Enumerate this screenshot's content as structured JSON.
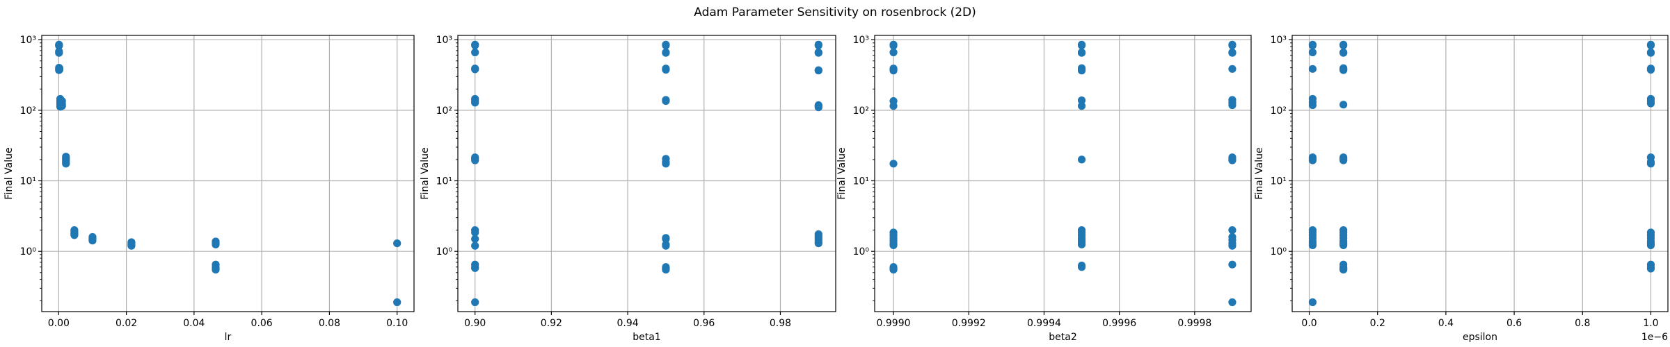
{
  "figure": {
    "title": "Adam Parameter Sensitivity on rosenbrock (2D)"
  },
  "colors": {
    "point": "#1f77b4",
    "grid": "#b0b0b0",
    "axis": "#000000"
  },
  "chart_data": [
    {
      "type": "scatter",
      "xlabel": "lr",
      "ylabel": "Final Value",
      "yscale": "log",
      "grid": true,
      "xlim": [
        -0.005,
        0.105
      ],
      "ylim": [
        0.14,
        1150
      ],
      "xticks": [
        0.0,
        0.02,
        0.04,
        0.06,
        0.08,
        0.1
      ],
      "xtick_labels": [
        "0.00",
        "0.02",
        "0.04",
        "0.06",
        "0.08",
        "0.10"
      ],
      "yticks": [
        1,
        10,
        100,
        1000
      ],
      "ytick_labels": [
        "10⁰",
        "10¹",
        "10²",
        "10³"
      ],
      "offset_text": "",
      "points": [
        {
          "x": 0.0001,
          "y": 850
        },
        {
          "x": 0.0001,
          "y": 830
        },
        {
          "x": 0.0001,
          "y": 820
        },
        {
          "x": 0.0001,
          "y": 680
        },
        {
          "x": 0.0001,
          "y": 650
        },
        {
          "x": 0.0001,
          "y": 400
        },
        {
          "x": 0.0001,
          "y": 385
        },
        {
          "x": 0.0001,
          "y": 370
        },
        {
          "x": 0.00022,
          "y": 395
        },
        {
          "x": 0.00022,
          "y": 375
        },
        {
          "x": 0.00046,
          "y": 145
        },
        {
          "x": 0.00046,
          "y": 138
        },
        {
          "x": 0.00046,
          "y": 130
        },
        {
          "x": 0.00046,
          "y": 125
        },
        {
          "x": 0.00046,
          "y": 118
        },
        {
          "x": 0.00046,
          "y": 112
        },
        {
          "x": 0.001,
          "y": 135
        },
        {
          "x": 0.001,
          "y": 122
        },
        {
          "x": 0.001,
          "y": 115
        },
        {
          "x": 0.00215,
          "y": 22
        },
        {
          "x": 0.00215,
          "y": 21
        },
        {
          "x": 0.00215,
          "y": 20
        },
        {
          "x": 0.00215,
          "y": 19
        },
        {
          "x": 0.00215,
          "y": 18
        },
        {
          "x": 0.00215,
          "y": 17.5
        },
        {
          "x": 0.00464,
          "y": 2.0
        },
        {
          "x": 0.00464,
          "y": 1.9
        },
        {
          "x": 0.00464,
          "y": 1.8
        },
        {
          "x": 0.00464,
          "y": 1.75
        },
        {
          "x": 0.00464,
          "y": 1.7
        },
        {
          "x": 0.01,
          "y": 1.6
        },
        {
          "x": 0.01,
          "y": 1.55
        },
        {
          "x": 0.01,
          "y": 1.5
        },
        {
          "x": 0.01,
          "y": 1.45
        },
        {
          "x": 0.01,
          "y": 1.42
        },
        {
          "x": 0.0215,
          "y": 1.35
        },
        {
          "x": 0.0215,
          "y": 1.3
        },
        {
          "x": 0.0215,
          "y": 1.25
        },
        {
          "x": 0.0215,
          "y": 1.22
        },
        {
          "x": 0.0215,
          "y": 1.2
        },
        {
          "x": 0.0464,
          "y": 1.38
        },
        {
          "x": 0.0464,
          "y": 1.3
        },
        {
          "x": 0.0464,
          "y": 1.25
        },
        {
          "x": 0.0464,
          "y": 0.65
        },
        {
          "x": 0.0464,
          "y": 0.6
        },
        {
          "x": 0.0464,
          "y": 0.58
        },
        {
          "x": 0.0464,
          "y": 0.55
        },
        {
          "x": 0.1,
          "y": 1.3
        },
        {
          "x": 0.1,
          "y": 0.19
        }
      ]
    },
    {
      "type": "scatter",
      "xlabel": "beta1",
      "ylabel": "Final Value",
      "yscale": "log",
      "grid": true,
      "xlim": [
        0.8955,
        0.9945
      ],
      "ylim": [
        0.14,
        1150
      ],
      "xticks": [
        0.9,
        0.92,
        0.94,
        0.96,
        0.98
      ],
      "xtick_labels": [
        "0.90",
        "0.92",
        "0.94",
        "0.96",
        "0.98"
      ],
      "yticks": [
        1,
        10,
        100,
        1000
      ],
      "ytick_labels": [
        "10⁰",
        "10¹",
        "10²",
        "10³"
      ],
      "offset_text": "",
      "points": [
        {
          "x": 0.9,
          "y": 850
        },
        {
          "x": 0.9,
          "y": 830
        },
        {
          "x": 0.9,
          "y": 660
        },
        {
          "x": 0.9,
          "y": 390
        },
        {
          "x": 0.9,
          "y": 380
        },
        {
          "x": 0.9,
          "y": 145
        },
        {
          "x": 0.9,
          "y": 135
        },
        {
          "x": 0.9,
          "y": 128
        },
        {
          "x": 0.9,
          "y": 21.5
        },
        {
          "x": 0.9,
          "y": 20.5
        },
        {
          "x": 0.9,
          "y": 19.5
        },
        {
          "x": 0.9,
          "y": 2.0
        },
        {
          "x": 0.9,
          "y": 1.85
        },
        {
          "x": 0.9,
          "y": 1.5
        },
        {
          "x": 0.9,
          "y": 1.2
        },
        {
          "x": 0.9,
          "y": 0.65
        },
        {
          "x": 0.9,
          "y": 0.6
        },
        {
          "x": 0.9,
          "y": 0.58
        },
        {
          "x": 0.9,
          "y": 0.19
        },
        {
          "x": 0.95,
          "y": 850
        },
        {
          "x": 0.95,
          "y": 830
        },
        {
          "x": 0.95,
          "y": 660
        },
        {
          "x": 0.95,
          "y": 650
        },
        {
          "x": 0.95,
          "y": 390
        },
        {
          "x": 0.95,
          "y": 375
        },
        {
          "x": 0.95,
          "y": 140
        },
        {
          "x": 0.95,
          "y": 135
        },
        {
          "x": 0.95,
          "y": 20.5
        },
        {
          "x": 0.95,
          "y": 18.5
        },
        {
          "x": 0.95,
          "y": 17.5
        },
        {
          "x": 0.95,
          "y": 1.55
        },
        {
          "x": 0.95,
          "y": 1.5
        },
        {
          "x": 0.95,
          "y": 1.25
        },
        {
          "x": 0.95,
          "y": 1.2
        },
        {
          "x": 0.95,
          "y": 0.6
        },
        {
          "x": 0.95,
          "y": 0.57
        },
        {
          "x": 0.95,
          "y": 0.55
        },
        {
          "x": 0.99,
          "y": 850
        },
        {
          "x": 0.99,
          "y": 830
        },
        {
          "x": 0.99,
          "y": 660
        },
        {
          "x": 0.99,
          "y": 650
        },
        {
          "x": 0.99,
          "y": 370
        },
        {
          "x": 0.99,
          "y": 365
        },
        {
          "x": 0.99,
          "y": 118
        },
        {
          "x": 0.99,
          "y": 114
        },
        {
          "x": 0.99,
          "y": 110
        },
        {
          "x": 0.99,
          "y": 1.75
        },
        {
          "x": 0.99,
          "y": 1.65
        },
        {
          "x": 0.99,
          "y": 1.55
        },
        {
          "x": 0.99,
          "y": 1.45
        },
        {
          "x": 0.99,
          "y": 1.35
        },
        {
          "x": 0.99,
          "y": 1.3
        }
      ]
    },
    {
      "type": "scatter",
      "xlabel": "beta2",
      "ylabel": "Final Value",
      "yscale": "log",
      "grid": true,
      "xlim": [
        0.99895,
        0.99995
      ],
      "ylim": [
        0.14,
        1150
      ],
      "xticks": [
        0.999,
        0.9992,
        0.9994,
        0.9996,
        0.9998
      ],
      "xtick_labels": [
        "0.9990",
        "0.9992",
        "0.9994",
        "0.9996",
        "0.9998"
      ],
      "yticks": [
        1,
        10,
        100,
        1000
      ],
      "ytick_labels": [
        "10⁰",
        "10¹",
        "10²",
        "10³"
      ],
      "offset_text": "",
      "points": [
        {
          "x": 0.999,
          "y": 850
        },
        {
          "x": 0.999,
          "y": 820
        },
        {
          "x": 0.999,
          "y": 660
        },
        {
          "x": 0.999,
          "y": 390
        },
        {
          "x": 0.999,
          "y": 375
        },
        {
          "x": 0.999,
          "y": 365
        },
        {
          "x": 0.999,
          "y": 135
        },
        {
          "x": 0.999,
          "y": 115
        },
        {
          "x": 0.999,
          "y": 17.5
        },
        {
          "x": 0.999,
          "y": 1.85
        },
        {
          "x": 0.999,
          "y": 1.7
        },
        {
          "x": 0.999,
          "y": 1.55
        },
        {
          "x": 0.999,
          "y": 1.42
        },
        {
          "x": 0.999,
          "y": 1.3
        },
        {
          "x": 0.999,
          "y": 1.22
        },
        {
          "x": 0.999,
          "y": 0.6
        },
        {
          "x": 0.999,
          "y": 0.57
        },
        {
          "x": 0.999,
          "y": 0.55
        },
        {
          "x": 0.9995,
          "y": 850
        },
        {
          "x": 0.9995,
          "y": 830
        },
        {
          "x": 0.9995,
          "y": 660
        },
        {
          "x": 0.9995,
          "y": 650
        },
        {
          "x": 0.9995,
          "y": 395
        },
        {
          "x": 0.9995,
          "y": 380
        },
        {
          "x": 0.9995,
          "y": 365
        },
        {
          "x": 0.9995,
          "y": 138
        },
        {
          "x": 0.9995,
          "y": 115
        },
        {
          "x": 0.9995,
          "y": 20
        },
        {
          "x": 0.9995,
          "y": 2.0
        },
        {
          "x": 0.9995,
          "y": 1.85
        },
        {
          "x": 0.9995,
          "y": 1.7
        },
        {
          "x": 0.9995,
          "y": 1.55
        },
        {
          "x": 0.9995,
          "y": 1.45
        },
        {
          "x": 0.9995,
          "y": 1.35
        },
        {
          "x": 0.9995,
          "y": 1.25
        },
        {
          "x": 0.9995,
          "y": 0.63
        },
        {
          "x": 0.9995,
          "y": 0.6
        },
        {
          "x": 0.9999,
          "y": 850
        },
        {
          "x": 0.9999,
          "y": 830
        },
        {
          "x": 0.9999,
          "y": 660
        },
        {
          "x": 0.9999,
          "y": 650
        },
        {
          "x": 0.9999,
          "y": 385
        },
        {
          "x": 0.9999,
          "y": 140
        },
        {
          "x": 0.9999,
          "y": 128
        },
        {
          "x": 0.9999,
          "y": 118
        },
        {
          "x": 0.9999,
          "y": 21.5
        },
        {
          "x": 0.9999,
          "y": 20.5
        },
        {
          "x": 0.9999,
          "y": 19.5
        },
        {
          "x": 0.9999,
          "y": 2.0
        },
        {
          "x": 0.9999,
          "y": 1.6
        },
        {
          "x": 0.9999,
          "y": 1.45
        },
        {
          "x": 0.9999,
          "y": 1.3
        },
        {
          "x": 0.9999,
          "y": 1.2
        },
        {
          "x": 0.9999,
          "y": 0.65
        },
        {
          "x": 0.9999,
          "y": 0.19
        }
      ]
    },
    {
      "type": "scatter",
      "xlabel": "epsilon",
      "ylabel": "Final Value",
      "yscale": "log",
      "grid": true,
      "xlim": [
        -0.05,
        1.05
      ],
      "ylim": [
        0.14,
        1150
      ],
      "xticks": [
        0.0,
        0.2,
        0.4,
        0.6,
        0.8,
        1.0
      ],
      "xtick_labels": [
        "0.0",
        "0.2",
        "0.4",
        "0.6",
        "0.8",
        "1.0"
      ],
      "yticks": [
        1,
        10,
        100,
        1000
      ],
      "ytick_labels": [
        "10⁰",
        "10¹",
        "10²",
        "10³"
      ],
      "offset_text": "1e−6",
      "points": [
        {
          "x": 0.01,
          "y": 850
        },
        {
          "x": 0.01,
          "y": 830
        },
        {
          "x": 0.01,
          "y": 660
        },
        {
          "x": 0.01,
          "y": 385
        },
        {
          "x": 0.01,
          "y": 145
        },
        {
          "x": 0.01,
          "y": 130
        },
        {
          "x": 0.01,
          "y": 118
        },
        {
          "x": 0.01,
          "y": 21.5
        },
        {
          "x": 0.01,
          "y": 20.5
        },
        {
          "x": 0.01,
          "y": 19.5
        },
        {
          "x": 0.01,
          "y": 2.0
        },
        {
          "x": 0.01,
          "y": 1.85
        },
        {
          "x": 0.01,
          "y": 1.7
        },
        {
          "x": 0.01,
          "y": 1.55
        },
        {
          "x": 0.01,
          "y": 1.4
        },
        {
          "x": 0.01,
          "y": 1.3
        },
        {
          "x": 0.01,
          "y": 1.22
        },
        {
          "x": 0.01,
          "y": 0.19
        },
        {
          "x": 0.1,
          "y": 850
        },
        {
          "x": 0.1,
          "y": 830
        },
        {
          "x": 0.1,
          "y": 660
        },
        {
          "x": 0.1,
          "y": 650
        },
        {
          "x": 0.1,
          "y": 395
        },
        {
          "x": 0.1,
          "y": 380
        },
        {
          "x": 0.1,
          "y": 370
        },
        {
          "x": 0.1,
          "y": 120
        },
        {
          "x": 0.1,
          "y": 21.5
        },
        {
          "x": 0.1,
          "y": 20.5
        },
        {
          "x": 0.1,
          "y": 19.5
        },
        {
          "x": 0.1,
          "y": 2.0
        },
        {
          "x": 0.1,
          "y": 1.85
        },
        {
          "x": 0.1,
          "y": 1.7
        },
        {
          "x": 0.1,
          "y": 1.55
        },
        {
          "x": 0.1,
          "y": 1.4
        },
        {
          "x": 0.1,
          "y": 1.3
        },
        {
          "x": 0.1,
          "y": 1.22
        },
        {
          "x": 0.1,
          "y": 0.65
        },
        {
          "x": 0.1,
          "y": 0.6
        },
        {
          "x": 0.1,
          "y": 0.57
        },
        {
          "x": 0.1,
          "y": 0.55
        },
        {
          "x": 1.0,
          "y": 850
        },
        {
          "x": 1.0,
          "y": 830
        },
        {
          "x": 1.0,
          "y": 660
        },
        {
          "x": 1.0,
          "y": 650
        },
        {
          "x": 1.0,
          "y": 390
        },
        {
          "x": 1.0,
          "y": 375
        },
        {
          "x": 1.0,
          "y": 145
        },
        {
          "x": 1.0,
          "y": 135
        },
        {
          "x": 1.0,
          "y": 125
        },
        {
          "x": 1.0,
          "y": 21.5
        },
        {
          "x": 1.0,
          "y": 18.5
        },
        {
          "x": 1.0,
          "y": 17.5
        },
        {
          "x": 1.0,
          "y": 1.85
        },
        {
          "x": 1.0,
          "y": 1.7
        },
        {
          "x": 1.0,
          "y": 1.55
        },
        {
          "x": 1.0,
          "y": 1.4
        },
        {
          "x": 1.0,
          "y": 1.3
        },
        {
          "x": 1.0,
          "y": 1.22
        },
        {
          "x": 1.0,
          "y": 0.65
        },
        {
          "x": 1.0,
          "y": 0.6
        },
        {
          "x": 1.0,
          "y": 0.57
        }
      ]
    }
  ]
}
